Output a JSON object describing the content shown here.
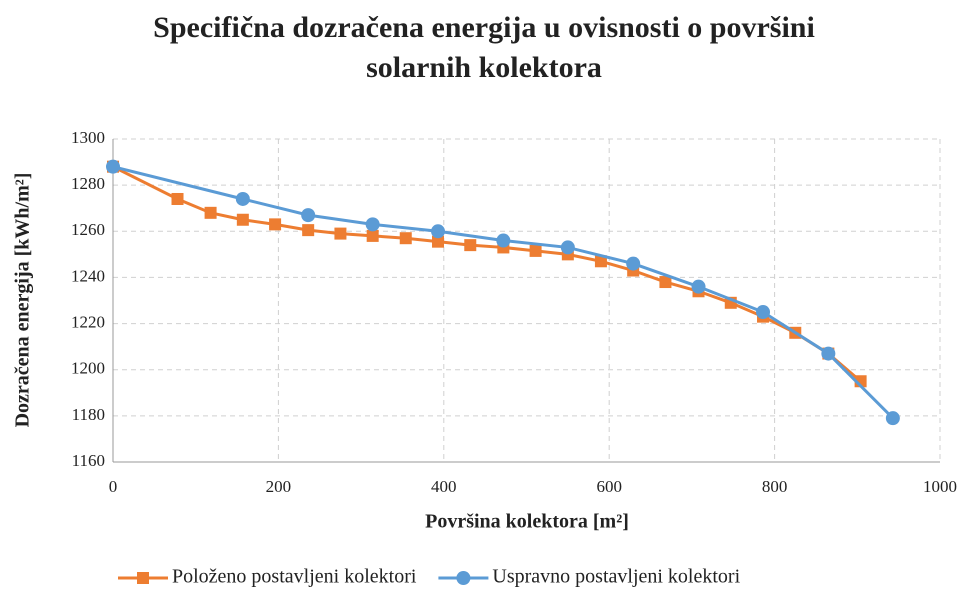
{
  "chart_data": {
    "type": "line",
    "title": [
      "Specifična dozračena  energija u ovisnosti o površini",
      "solarnih  kolektora"
    ],
    "xlabel": "Površina kolektora [m²]",
    "ylabel": "Dozračena energija  [kWh/m²]",
    "xlim": [
      0,
      1000
    ],
    "xticks": [
      0,
      200,
      400,
      600,
      800,
      1000
    ],
    "ylim": [
      1160,
      1300
    ],
    "yticks": [
      1160,
      1180,
      1200,
      1220,
      1240,
      1260,
      1280,
      1300
    ],
    "grid": true,
    "legend": "bottom",
    "series": [
      {
        "name": "Položeno postavljeni kolektori",
        "color": "#ed7d31",
        "marker": "square",
        "x": [
          0,
          78,
          118,
          157,
          196,
          236,
          275,
          314,
          354,
          393,
          432,
          472,
          511,
          550,
          590,
          629,
          668,
          708,
          747,
          786,
          825,
          865,
          904
        ],
        "values": [
          1288,
          1274,
          1268,
          1265,
          1263,
          1260.5,
          1259,
          1258,
          1257,
          1255.5,
          1254,
          1253,
          1251.5,
          1250,
          1247,
          1243,
          1238,
          1234,
          1229,
          1223,
          1216,
          1207,
          1195
        ]
      },
      {
        "name": "Uspravno postavljeni kolektori",
        "color": "#5b9bd5",
        "marker": "circle",
        "x": [
          0,
          157,
          236,
          314,
          393,
          472,
          550,
          629,
          708,
          786,
          865,
          943
        ],
        "values": [
          1288,
          1274,
          1267,
          1263,
          1260,
          1256,
          1253,
          1246,
          1236,
          1225,
          1207,
          1179
        ]
      }
    ]
  }
}
